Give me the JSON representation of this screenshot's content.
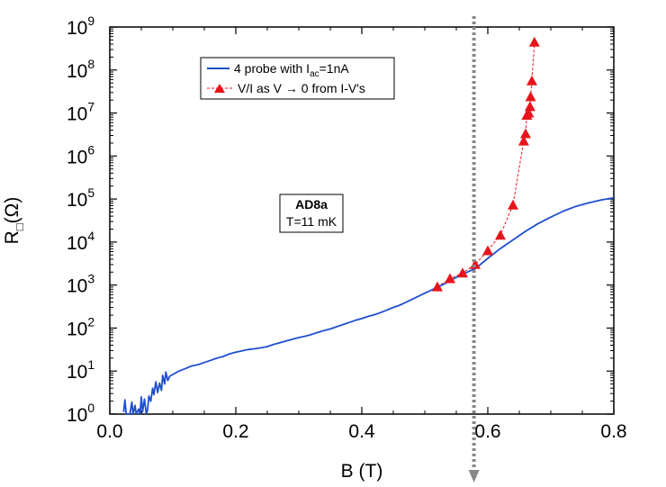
{
  "chart_data": {
    "type": "line",
    "ylabel_main": "R",
    "ylabel_sub": "□",
    "ylabel_unit": "(Ω)",
    "xlabel": "B (T)",
    "xlim": [
      0,
      0.8
    ],
    "ylim_log10": [
      0,
      9
    ],
    "yscale": "log",
    "x_ticks": [
      "0.0",
      "0.2",
      "0.4",
      "0.6",
      "0.8"
    ],
    "y_tick_base": "10",
    "y_tick_exponents": [
      "0",
      "1",
      "2",
      "3",
      "4",
      "5",
      "6",
      "7",
      "8",
      "9"
    ],
    "annotation": {
      "title": "AD8a",
      "subtitle": "T=11 mK"
    },
    "vertical_marker": {
      "x": 0.578,
      "color": "#888888",
      "style": "dotted-arrow"
    },
    "series": [
      {
        "name": "4 probe with I_ac=1nA",
        "legend_prefix": "4 probe with I",
        "legend_sub": "ac",
        "legend_suffix": "=1nA",
        "color": "#1f4fd1",
        "style": "solid",
        "points": [
          [
            0.022,
            0.05
          ],
          [
            0.024,
            0.33
          ],
          [
            0.026,
            0.0
          ],
          [
            0.032,
            0.0
          ],
          [
            0.035,
            0.28
          ],
          [
            0.037,
            0.0
          ],
          [
            0.04,
            0.2
          ],
          [
            0.042,
            0.0
          ],
          [
            0.046,
            0.12
          ],
          [
            0.048,
            0.0
          ],
          [
            0.05,
            0.4
          ],
          [
            0.052,
            0.05
          ],
          [
            0.055,
            0.35
          ],
          [
            0.058,
            0.0
          ],
          [
            0.06,
            0.1
          ],
          [
            0.062,
            0.42
          ],
          [
            0.065,
            0.3
          ],
          [
            0.068,
            0.6
          ],
          [
            0.07,
            0.45
          ],
          [
            0.073,
            0.75
          ],
          [
            0.076,
            0.5
          ],
          [
            0.079,
            0.72
          ],
          [
            0.082,
            0.55
          ],
          [
            0.084,
            0.9
          ],
          [
            0.087,
            0.7
          ],
          [
            0.089,
            0.98
          ],
          [
            0.092,
            0.78
          ],
          [
            0.095,
            0.88
          ],
          [
            0.1,
            0.92
          ],
          [
            0.11,
            1.0
          ],
          [
            0.12,
            1.06
          ],
          [
            0.13,
            1.12
          ],
          [
            0.14,
            1.15
          ],
          [
            0.15,
            1.2
          ],
          [
            0.16,
            1.25
          ],
          [
            0.17,
            1.3
          ],
          [
            0.18,
            1.34
          ],
          [
            0.19,
            1.4
          ],
          [
            0.2,
            1.44
          ],
          [
            0.21,
            1.47
          ],
          [
            0.22,
            1.5
          ],
          [
            0.23,
            1.52
          ],
          [
            0.24,
            1.54
          ],
          [
            0.25,
            1.57
          ],
          [
            0.26,
            1.62
          ],
          [
            0.27,
            1.66
          ],
          [
            0.28,
            1.7
          ],
          [
            0.29,
            1.74
          ],
          [
            0.3,
            1.78
          ],
          [
            0.31,
            1.81
          ],
          [
            0.32,
            1.85
          ],
          [
            0.33,
            1.9
          ],
          [
            0.34,
            1.94
          ],
          [
            0.35,
            1.98
          ],
          [
            0.36,
            2.03
          ],
          [
            0.37,
            2.08
          ],
          [
            0.38,
            2.13
          ],
          [
            0.39,
            2.18
          ],
          [
            0.4,
            2.22
          ],
          [
            0.41,
            2.27
          ],
          [
            0.42,
            2.31
          ],
          [
            0.43,
            2.36
          ],
          [
            0.44,
            2.42
          ],
          [
            0.45,
            2.48
          ],
          [
            0.46,
            2.53
          ],
          [
            0.47,
            2.6
          ],
          [
            0.48,
            2.67
          ],
          [
            0.49,
            2.74
          ],
          [
            0.5,
            2.81
          ],
          [
            0.51,
            2.88
          ],
          [
            0.52,
            2.95
          ],
          [
            0.53,
            3.02
          ],
          [
            0.54,
            3.1
          ],
          [
            0.55,
            3.18
          ],
          [
            0.56,
            3.25
          ],
          [
            0.57,
            3.32
          ],
          [
            0.58,
            3.38
          ],
          [
            0.59,
            3.5
          ],
          [
            0.6,
            3.62
          ],
          [
            0.62,
            3.85
          ],
          [
            0.64,
            4.05
          ],
          [
            0.66,
            4.25
          ],
          [
            0.68,
            4.43
          ],
          [
            0.7,
            4.58
          ],
          [
            0.72,
            4.72
          ],
          [
            0.74,
            4.83
          ],
          [
            0.76,
            4.91
          ],
          [
            0.78,
            4.98
          ],
          [
            0.8,
            5.03
          ]
        ]
      },
      {
        "name": "V/I as V → 0 from I-V's",
        "legend_text": "V/I as V → 0  from I-V's",
        "color": "#e8141b",
        "style": "dashed",
        "marker": "triangle",
        "points": [
          [
            0.52,
            2.96
          ],
          [
            0.54,
            3.15
          ],
          [
            0.56,
            3.28
          ],
          [
            0.58,
            3.48
          ],
          [
            0.6,
            3.8
          ],
          [
            0.62,
            4.16
          ],
          [
            0.64,
            4.86
          ],
          [
            0.657,
            6.35
          ],
          [
            0.66,
            6.52
          ],
          [
            0.662,
            6.95
          ],
          [
            0.665,
            7.0
          ],
          [
            0.667,
            7.15
          ],
          [
            0.668,
            7.38
          ],
          [
            0.67,
            7.75
          ],
          [
            0.674,
            8.65
          ]
        ]
      }
    ]
  }
}
